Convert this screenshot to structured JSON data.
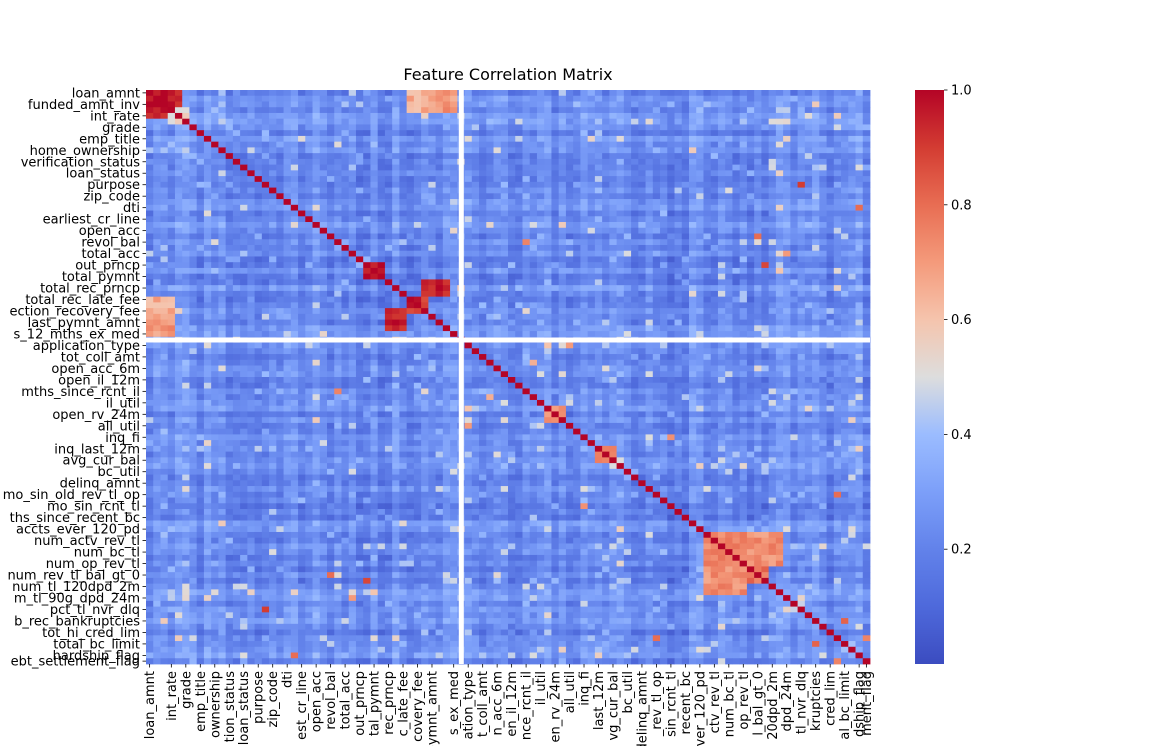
{
  "chart_data": {
    "type": "heatmap",
    "title": "Feature Correlation Matrix",
    "colormap": "coolwarm",
    "vmin": 0.0,
    "vmax": 1.0,
    "colorbar_ticks": [
      "0.2",
      "0.4",
      "0.6",
      "0.8",
      "1.0"
    ],
    "colorbar_tick_values": [
      0.2,
      0.4,
      0.6,
      0.8,
      1.0
    ],
    "n_features": 100,
    "separator_after_index": 43,
    "separator_color": "#ffffff",
    "ytick_labels": [
      "loan_amnt",
      "funded_amnt_inv",
      "int_rate",
      "grade",
      "emp_title",
      "home_ownership",
      "verification_status",
      "loan_status",
      "purpose",
      "zip_code",
      "dti",
      "earliest_cr_line",
      "open_acc",
      "revol_bal",
      "total_acc",
      "out_prncp",
      "total_pymnt",
      "total_rec_prncp",
      "total_rec_late_fee",
      "ection_recovery_fee",
      "last_pymnt_amnt",
      "s_12_mths_ex_med",
      "application_type",
      "tot_coll_amt",
      "open_acc_6m",
      "open_il_12m",
      "mths_since_rcnt_il",
      "il_util",
      "open_rv_24m",
      "all_util",
      "inq_fi",
      "inq_last_12m",
      "avg_cur_bal",
      "bc_util",
      "delinq_amnt",
      "mo_sin_old_rev_tl_op",
      "mo_sin_rcnt_tl",
      "ths_since_recent_bc",
      "accts_ever_120_pd",
      "num_actv_rev_tl",
      "num_bc_tl",
      "num_op_rev_tl",
      "num_rev_tl_bal_gt_0",
      "num_tl_120dpd_2m",
      "m_tl_90g_dpd_24m",
      "pct_tl_nvr_dlq",
      "b_rec_bankruptcies",
      "tot_hi_cred_lim",
      "total_bc_limit",
      "hardship_flag",
      "ebt_settlement_flag"
    ],
    "xtick_labels": [
      "loan_amnt",
      "int_rate",
      "grade",
      "emp_title",
      "ownership",
      "tion_status",
      "loan_status",
      "purpose",
      "zip_code",
      "dti",
      "est_cr_line",
      "open_acc",
      "revol_bal",
      "total_acc",
      "out_prncp",
      "tal_pymnt",
      "rec_prncp",
      "c_late_fee",
      "covery_fee",
      "pymnt_amnt",
      "s_ex_med",
      "ation_type",
      "t_coll_amt",
      "n_acc_6m",
      "en_il_12m",
      "nce_rcnt_il",
      "il_util",
      "en_rv_24m",
      "all_util",
      "inq_fi",
      "last_12m",
      "vg_cur_bal",
      "bc_util",
      "delinq_amnt",
      "_rev_tl_op",
      "sin_rcnt_tl",
      "recent_bc",
      "ver_120_pd",
      "ctv_rev_tl",
      "num_bc_tl",
      "op_rev_tl",
      "l_bal_gt_0",
      "20dpd_2m",
      "dpd_24m",
      "tl_nvr_dlq",
      "kruptcies",
      "cred_lim",
      "al_bc_limit",
      "dship_flag",
      "ment_flag"
    ],
    "xtick_indices": [
      0,
      3,
      5,
      7,
      9,
      11,
      13,
      15,
      17,
      19,
      21,
      23,
      25,
      27,
      29,
      31,
      33,
      35,
      37,
      39,
      42,
      44,
      46,
      48,
      50,
      52,
      54,
      56,
      58,
      60,
      62,
      64,
      66,
      68,
      70,
      72,
      74,
      76,
      78,
      80,
      82,
      84,
      86,
      88,
      90,
      92,
      94,
      96,
      98,
      99
    ],
    "ytick_indices": [
      0,
      2,
      4,
      6,
      8,
      10,
      12,
      14,
      16,
      18,
      20,
      22,
      24,
      26,
      28,
      30,
      32,
      34,
      36,
      38,
      40,
      42,
      44,
      46,
      48,
      50,
      52,
      54,
      56,
      58,
      60,
      62,
      64,
      66,
      68,
      70,
      72,
      74,
      76,
      78,
      80,
      82,
      84,
      86,
      88,
      90,
      92,
      94,
      96,
      98,
      99
    ],
    "blocks": [
      {
        "rows": [
          0,
          2
        ],
        "cols": [
          0,
          2
        ],
        "value": 0.97
      },
      {
        "rows": [
          3,
          4
        ],
        "cols": [
          0,
          2
        ],
        "value": 0.96
      },
      {
        "rows": [
          0,
          2
        ],
        "cols": [
          3,
          4
        ],
        "value": 0.96
      },
      {
        "rows": [
          3,
          5
        ],
        "cols": [
          3,
          5
        ],
        "value": 0.55
      },
      {
        "rows": [
          0,
          3
        ],
        "cols": [
          37,
          39
        ],
        "value": 0.45
      },
      {
        "rows": [
          0,
          3
        ],
        "cols": [
          40,
          42
        ],
        "value": 0.7
      },
      {
        "rows": [
          36,
          39
        ],
        "cols": [
          0,
          3
        ],
        "value": 0.65
      },
      {
        "rows": [
          33,
          35
        ],
        "cols": [
          38,
          41
        ],
        "value": 0.95
      },
      {
        "rows": [
          38,
          41
        ],
        "cols": [
          33,
          35
        ],
        "value": 0.95
      },
      {
        "rows": [
          30,
          32
        ],
        "cols": [
          30,
          32
        ],
        "value": 0.98
      },
      {
        "rows": [
          36,
          38
        ],
        "cols": [
          36,
          38
        ],
        "value": 0.92
      },
      {
        "rows": [
          77,
          82
        ],
        "cols": [
          77,
          82
        ],
        "value": 0.75
      },
      {
        "rows": [
          80,
          85
        ],
        "cols": [
          80,
          85
        ],
        "value": 0.78
      },
      {
        "rows": [
          77,
          82
        ],
        "cols": [
          83,
          87
        ],
        "value": 0.72
      },
      {
        "rows": [
          83,
          87
        ],
        "cols": [
          77,
          82
        ],
        "value": 0.72
      },
      {
        "rows": [
          55,
          57
        ],
        "cols": [
          55,
          57
        ],
        "value": 0.7
      },
      {
        "rows": [
          62,
          64
        ],
        "cols": [
          62,
          64
        ],
        "value": 0.75
      }
    ],
    "cells": [
      {
        "r": 16,
        "c": 90,
        "v": 0.9
      },
      {
        "r": 90,
        "c": 16,
        "v": 0.9
      },
      {
        "r": 25,
        "c": 84,
        "v": 0.8
      },
      {
        "r": 84,
        "c": 25,
        "v": 0.8
      },
      {
        "r": 26,
        "c": 52,
        "v": 0.75
      },
      {
        "r": 52,
        "c": 26,
        "v": 0.75
      },
      {
        "r": 44,
        "c": 58,
        "v": 0.7
      },
      {
        "r": 58,
        "c": 44,
        "v": 0.7
      },
      {
        "r": 60,
        "c": 72,
        "v": 0.72
      },
      {
        "r": 72,
        "c": 60,
        "v": 0.72
      },
      {
        "r": 70,
        "c": 95,
        "v": 0.8
      },
      {
        "r": 95,
        "c": 70,
        "v": 0.8
      },
      {
        "r": 92,
        "c": 96,
        "v": 0.82
      },
      {
        "r": 96,
        "c": 92,
        "v": 0.82
      },
      {
        "r": 47,
        "c": 53,
        "v": 0.65
      },
      {
        "r": 53,
        "c": 47,
        "v": 0.65
      },
      {
        "r": 88,
        "c": 28,
        "v": 0.7
      },
      {
        "r": 28,
        "c": 88,
        "v": 0.7
      },
      {
        "r": 98,
        "c": 20,
        "v": 0.8
      },
      {
        "r": 20,
        "c": 98,
        "v": 0.8
      },
      {
        "r": 85,
        "c": 30,
        "v": 0.88
      },
      {
        "r": 30,
        "c": 85,
        "v": 0.88
      },
      {
        "r": 44,
        "c": 55,
        "v": 0.6
      },
      {
        "r": 55,
        "c": 44,
        "v": 0.6
      },
      {
        "r": 95,
        "c": 99,
        "v": 0.75
      },
      {
        "r": 99,
        "c": 95,
        "v": 0.75
      }
    ]
  }
}
